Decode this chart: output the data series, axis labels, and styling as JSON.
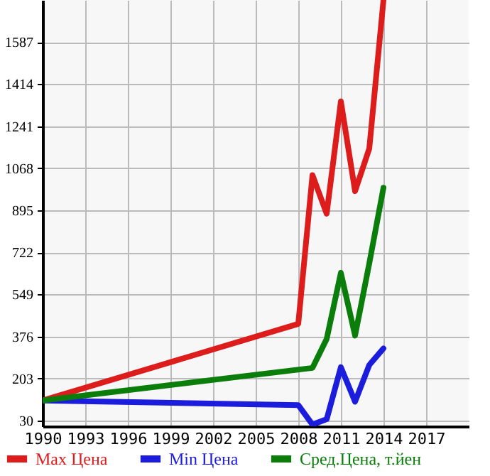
{
  "chart_data": {
    "type": "line",
    "xlim": [
      1990,
      2020
    ],
    "xticks": [
      1990,
      1993,
      1996,
      1999,
      2002,
      2005,
      2008,
      2011,
      2014,
      2017
    ],
    "ylim": [
      7,
      1760
    ],
    "yticks": [
      30,
      203,
      376,
      549,
      722,
      895,
      1068,
      1241,
      1414,
      1587
    ],
    "grid": true,
    "legend": "bottom",
    "line_style": "solid",
    "marker": "none",
    "series": [
      {
        "name": "Max Цена",
        "color": "#dd1c1c",
        "x": [
          1990,
          2008,
          2009,
          2010,
          2011,
          2012,
          2013,
          2014
        ],
        "values": [
          113,
          428,
          1040,
          881,
          1343,
          974,
          1149,
          1760
        ]
      },
      {
        "name": "Min Цена",
        "color": "#1c1cdd",
        "x": [
          1990,
          2008,
          2009,
          2010,
          2011,
          2012,
          2013,
          2014
        ],
        "values": [
          113,
          94,
          14,
          36,
          250,
          108,
          259,
          327
        ]
      },
      {
        "name": "Сред.Цена, т.йен",
        "color": "#0a7d0a",
        "x": [
          1990,
          2009,
          2010,
          2011,
          2012,
          2013,
          2014
        ],
        "values": [
          113,
          247,
          366,
          638,
          380,
          677,
          988
        ]
      }
    ]
  }
}
